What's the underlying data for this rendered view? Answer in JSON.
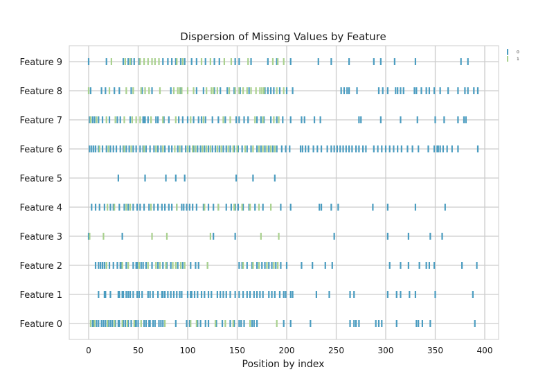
{
  "chart_data": {
    "type": "scatter",
    "title": "Dispersion of Missing Values by Feature",
    "xlabel": "Position by index",
    "ylabel": "",
    "xlim": [
      -20,
      413
    ],
    "xticks": [
      0,
      50,
      100,
      150,
      200,
      250,
      300,
      350,
      400
    ],
    "xtick_labels": [
      "0",
      "50",
      "100",
      "150",
      "200",
      "250",
      "300",
      "350",
      "400"
    ],
    "categories": [
      "Feature 0",
      "Feature 1",
      "Feature 2",
      "Feature 3",
      "Feature 4",
      "Feature 5",
      "Feature 6",
      "Feature 7",
      "Feature 8",
      "Feature 9"
    ],
    "grid": true,
    "legend_position": "outside-right-top",
    "series": [
      {
        "name": "0",
        "color": "#4a9cc0",
        "points": {
          "Feature 0": [
            4,
            5,
            8,
            10,
            13,
            15,
            17,
            20,
            22,
            24,
            27,
            30,
            31,
            35,
            37,
            40,
            43,
            47,
            48,
            50,
            56,
            58,
            61,
            62,
            65,
            67,
            71,
            73,
            75,
            88,
            99,
            102,
            110,
            113,
            118,
            121,
            129,
            135,
            143,
            147,
            152,
            154,
            157,
            165,
            167,
            170,
            197,
            204,
            224,
            264,
            268,
            270,
            273,
            290,
            293,
            296,
            311,
            331,
            333,
            337,
            345,
            390
          ],
          "Feature 1": [
            10,
            16,
            17,
            22,
            30,
            31,
            34,
            35,
            38,
            40,
            42,
            45,
            49,
            51,
            54,
            60,
            62,
            65,
            70,
            74,
            75,
            77,
            80,
            83,
            86,
            89,
            92,
            94,
            100,
            103,
            104,
            107,
            110,
            114,
            117,
            121,
            124,
            130,
            133,
            136,
            139,
            143,
            148,
            152,
            156,
            160,
            163,
            167,
            170,
            173,
            176,
            182,
            185,
            188,
            193,
            197,
            199,
            204,
            206,
            230,
            243,
            264,
            268,
            302,
            311,
            315,
            324,
            330,
            350,
            388
          ],
          "Feature 2": [
            7,
            10,
            12,
            14,
            16,
            18,
            21,
            25,
            29,
            32,
            33,
            38,
            45,
            48,
            49,
            53,
            55,
            58,
            64,
            70,
            75,
            79,
            83,
            90,
            95,
            103,
            108,
            111,
            120,
            152,
            155,
            160,
            165,
            170,
            172,
            175,
            178,
            182,
            185,
            189,
            194,
            200,
            215,
            226,
            239,
            246,
            304,
            315,
            323,
            334,
            341,
            344,
            349,
            377,
            392
          ],
          "Feature 3": [
            0,
            34,
            126,
            148,
            248,
            302,
            323,
            345,
            357
          ],
          "Feature 4": [
            3,
            7,
            11,
            16,
            22,
            25,
            31,
            36,
            40,
            45,
            49,
            52,
            56,
            61,
            66,
            70,
            74,
            77,
            81,
            84,
            89,
            94,
            96,
            99,
            102,
            105,
            109,
            116,
            121,
            126,
            131,
            139,
            144,
            148,
            151,
            156,
            162,
            168,
            176,
            194,
            204,
            233,
            235,
            245,
            252,
            287,
            302,
            330,
            360
          ],
          "Feature 5": [
            30,
            57,
            78,
            88,
            97,
            149,
            166,
            188
          ],
          "Feature 6": [
            1,
            3,
            5,
            7,
            10,
            14,
            18,
            22,
            25,
            28,
            32,
            35,
            38,
            41,
            45,
            48,
            52,
            55,
            58,
            62,
            66,
            70,
            73,
            77,
            81,
            84,
            90,
            94,
            98,
            102,
            106,
            110,
            113,
            117,
            121,
            125,
            128,
            132,
            136,
            139,
            143,
            147,
            151,
            155,
            160,
            164,
            170,
            174,
            178,
            182,
            186,
            190,
            195,
            199,
            203,
            214,
            216,
            219,
            222,
            227,
            231,
            235,
            241,
            245,
            248,
            251,
            254,
            257,
            260,
            263,
            266,
            270,
            273,
            277,
            280,
            288,
            292,
            296,
            300,
            304,
            308,
            312,
            316,
            322,
            327,
            333,
            343,
            349,
            352,
            353,
            355,
            358,
            362,
            367,
            373,
            393
          ],
          "Feature 7": [
            1,
            4,
            6,
            10,
            14,
            21,
            29,
            32,
            42,
            55,
            56,
            57,
            60,
            68,
            70,
            76,
            81,
            91,
            95,
            100,
            106,
            111,
            114,
            118,
            125,
            131,
            138,
            149,
            152,
            157,
            161,
            170,
            174,
            177,
            184,
            190,
            196,
            204,
            215,
            218,
            228,
            234,
            273,
            275,
            295,
            315,
            332,
            350,
            359,
            373,
            379,
            381
          ],
          "Feature 8": [
            2,
            13,
            17,
            26,
            31,
            43,
            54,
            64,
            83,
            93,
            109,
            116,
            127,
            133,
            140,
            147,
            153,
            162,
            178,
            181,
            184,
            187,
            193,
            200,
            206,
            255,
            258,
            261,
            263,
            271,
            293,
            297,
            302,
            310,
            312,
            315,
            318,
            329,
            331,
            336,
            341,
            344,
            349,
            355,
            363,
            373,
            380,
            383,
            389,
            393
          ],
          "Feature 9": [
            0,
            18,
            35,
            40,
            43,
            46,
            51,
            75,
            80,
            84,
            88,
            93,
            97,
            104,
            109,
            118,
            127,
            132,
            148,
            152,
            164,
            181,
            190,
            204,
            232,
            245,
            263,
            288,
            295,
            309,
            330,
            376,
            383
          ]
        }
      },
      {
        "name": "1",
        "color": "#a9d18e",
        "points": {
          "Feature 0": [
            2,
            6,
            19,
            26,
            34,
            39,
            46,
            53,
            77,
            103,
            109,
            128,
            138,
            146,
            163,
            190
          ],
          "Feature 1": [],
          "Feature 2": [
            18,
            34,
            40,
            51,
            60,
            68,
            72,
            78,
            85,
            88,
            93,
            97,
            120,
            156,
            166,
            172,
            180,
            187,
            191
          ],
          "Feature 3": [
            1,
            15,
            64,
            79,
            123,
            174,
            192
          ],
          "Feature 4": [
            19,
            26,
            38,
            42,
            63,
            89,
            117,
            131,
            147,
            155,
            163,
            172,
            184
          ],
          "Feature 5": [],
          "Feature 6": [
            11,
            20,
            36,
            43,
            56,
            68,
            75,
            87,
            92,
            100,
            105,
            108,
            115,
            119,
            123,
            130,
            134,
            141,
            146,
            150,
            158,
            166,
            172,
            176,
            180,
            184,
            188
          ],
          "Feature 7": [
            2,
            8,
            18,
            27,
            36,
            44,
            48,
            52,
            63,
            75,
            88,
            103,
            116,
            136,
            143,
            168,
            176,
            187,
            192
          ],
          "Feature 8": [
            0,
            21,
            38,
            45,
            53,
            57,
            61,
            72,
            86,
            90,
            92,
            94,
            100,
            106,
            119,
            124,
            126,
            130,
            142,
            148,
            152,
            156,
            160,
            164,
            169,
            173,
            175,
            177,
            190,
            197
          ],
          "Feature 9": [
            23,
            37,
            42,
            52,
            56,
            60,
            64,
            67,
            71,
            89,
            95,
            114,
            123,
            137,
            144,
            161,
            186,
            191,
            197
          ]
        }
      }
    ]
  }
}
